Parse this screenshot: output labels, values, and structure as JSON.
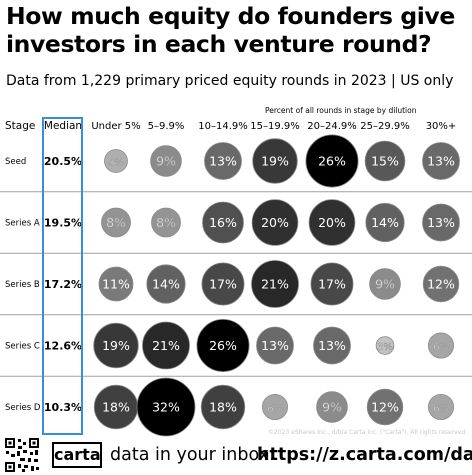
{
  "header": {
    "title": "How much equity do founders give investors in each venture round?",
    "subtitle": "Data from 1,229 primary priced equity rounds in 2023 | US only",
    "scope_note": "Percent of all rounds in stage by dilution"
  },
  "chart_data": {
    "type": "table",
    "title": "How much equity do founders give investors in each venture round?",
    "subtitle": "Data from 1,229 primary priced equity rounds in 2023 | US only",
    "column_group_label": "Percent of all rounds in stage by dilution",
    "stage_header": "Stage",
    "median_header": "Median",
    "columns": [
      "Under 5%",
      "5–9.9%",
      "10–14.9%",
      "15–19.9%",
      "20–24.9%",
      "25–29.9%",
      "30%+"
    ],
    "rows": [
      {
        "stage": "Seed",
        "median": "20.5%",
        "values": [
          5,
          9,
          13,
          19,
          26,
          15,
          13
        ]
      },
      {
        "stage": "Series A",
        "median": "19.5%",
        "values": [
          8,
          8,
          16,
          20,
          20,
          14,
          13
        ]
      },
      {
        "stage": "Series B",
        "median": "17.2%",
        "values": [
          11,
          14,
          17,
          21,
          17,
          9,
          12
        ]
      },
      {
        "stage": "Series C",
        "median": "12.6%",
        "values": [
          19,
          21,
          26,
          13,
          13,
          3,
          6
        ]
      },
      {
        "stage": "Series D",
        "median": "10.3%",
        "values": [
          18,
          32,
          18,
          6,
          9,
          12,
          6
        ]
      }
    ],
    "value_suffix": "%",
    "colors": {
      "median_box": "#3a8ddc",
      "dark": "#000000",
      "light": "#e2e2e2"
    }
  },
  "footer": {
    "copyright": "©2023 eShares Inc., d/b/a Carta Inc. (\"Carta\"). All rights reserved.",
    "logo_text": "carta",
    "cta": "data in your inbox:",
    "url": "https://z.carta.com/data"
  }
}
